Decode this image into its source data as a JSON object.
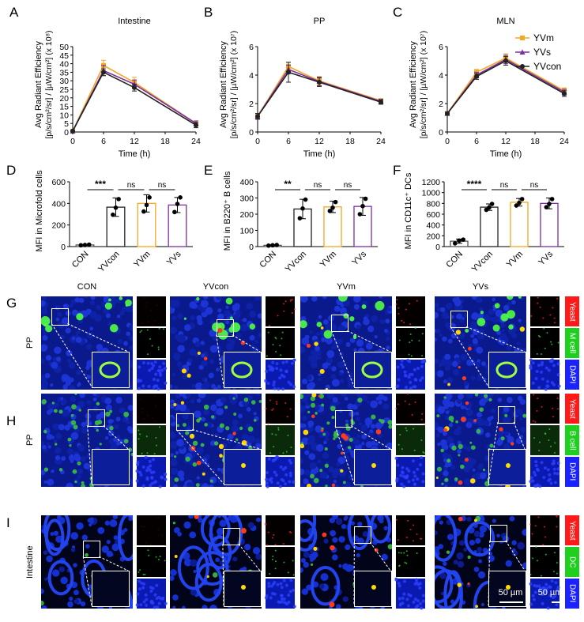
{
  "panel_letters": [
    "A",
    "B",
    "C",
    "D",
    "E",
    "F",
    "G",
    "H",
    "I"
  ],
  "line_charts": [
    {
      "id": "A",
      "title": "Intestine",
      "type": "line",
      "ylabel_1": "Avg Radiant Efficiency",
      "ylabel_2": "[p/s/cm²/sr] / [µW/cm²] (x 10⁸)",
      "xlabel": "Time (h)",
      "x_ticks": [
        "0",
        "6",
        "12",
        "18",
        "24"
      ],
      "y_ticks": [
        "0",
        "5",
        "10",
        "15",
        "20",
        "25",
        "30",
        "35",
        "40",
        "45",
        "50"
      ],
      "xlim": [
        0,
        24
      ],
      "ylim": [
        0,
        50
      ],
      "x": [
        0,
        6,
        12,
        24
      ],
      "series": [
        {
          "name": "YVm",
          "color": "#f5a623",
          "values": [
            0.5,
            39,
            29,
            5
          ],
          "err": [
            0.3,
            3,
            3,
            1.5
          ]
        },
        {
          "name": "YVs",
          "color": "#7b2fa0",
          "values": [
            0.5,
            36,
            28,
            5
          ],
          "err": [
            0.3,
            3,
            2.5,
            1.5
          ]
        },
        {
          "name": "YVcon",
          "color": "#222222",
          "values": [
            0.5,
            35,
            26,
            4
          ],
          "err": [
            0.3,
            2,
            2,
            1.5
          ]
        }
      ]
    },
    {
      "id": "B",
      "title": "PP",
      "type": "line",
      "ylabel_1": "Avg Radiant Efficiency",
      "ylabel_2": "[p/s/cm²/sr] / [µW/cm²] (x 10⁷)",
      "xlabel": "Time (h)",
      "x_ticks": [
        "0",
        "6",
        "12",
        "18",
        "24"
      ],
      "y_ticks": [
        "0",
        "2",
        "4",
        "6"
      ],
      "xlim": [
        0,
        24
      ],
      "ylim": [
        0,
        6
      ],
      "x": [
        0,
        6,
        12,
        24
      ],
      "series": [
        {
          "name": "YVm",
          "color": "#f5a623",
          "values": [
            1.1,
            4.6,
            3.6,
            2.2
          ],
          "err": [
            0.2,
            0.3,
            0.3,
            0.15
          ]
        },
        {
          "name": "YVs",
          "color": "#7b2fa0",
          "values": [
            1.1,
            4.4,
            3.55,
            2.15
          ],
          "err": [
            0.2,
            0.3,
            0.3,
            0.15
          ]
        },
        {
          "name": "YVcon",
          "color": "#222222",
          "values": [
            1.1,
            4.2,
            3.5,
            2.1
          ],
          "err": [
            0.2,
            0.7,
            0.3,
            0.15
          ]
        }
      ]
    },
    {
      "id": "C",
      "title": "MLN",
      "type": "line",
      "ylabel_1": "Avg Radiant Efficiency",
      "ylabel_2": "[p/s/cm²/sr] / [µW/cm²] (x 10⁷)",
      "xlabel": "Time (h)",
      "x_ticks": [
        "0",
        "6",
        "12",
        "18",
        "24"
      ],
      "y_ticks": [
        "0",
        "2",
        "4",
        "6"
      ],
      "xlim": [
        0,
        24
      ],
      "ylim": [
        0,
        6
      ],
      "x": [
        0,
        6,
        12,
        24
      ],
      "series": [
        {
          "name": "YVm",
          "color": "#f5a623",
          "values": [
            1.3,
            4.2,
            5.2,
            2.9
          ],
          "err": [
            0.1,
            0.2,
            0.3,
            0.2
          ]
        },
        {
          "name": "YVs",
          "color": "#7b2fa0",
          "values": [
            1.3,
            4.0,
            5.1,
            2.8
          ],
          "err": [
            0.1,
            0.2,
            0.3,
            0.2
          ]
        },
        {
          "name": "YVcon",
          "color": "#222222",
          "values": [
            1.3,
            3.9,
            5.0,
            2.7
          ],
          "err": [
            0.1,
            0.2,
            0.3,
            0.2
          ]
        }
      ],
      "legend": [
        "YVm",
        "YVs",
        "YVcon"
      ]
    }
  ],
  "bar_charts": [
    {
      "id": "D",
      "type": "bar",
      "ylabel": "MFI in Microfold cells",
      "categories": [
        "CON",
        "YVcon",
        "YVm",
        "YVs"
      ],
      "colors": [
        "#555555",
        "#222222",
        "#f5a623",
        "#7b2fa0"
      ],
      "values": [
        15,
        365,
        400,
        385
      ],
      "err": [
        5,
        85,
        80,
        70
      ],
      "points": [
        [
          12,
          15,
          18
        ],
        [
          295,
          360,
          440
        ],
        [
          325,
          385,
          455
        ],
        [
          320,
          395,
          455
        ]
      ],
      "y_ticks": [
        "0",
        "200",
        "400",
        "600"
      ],
      "ylim": [
        0,
        600
      ],
      "sig": [
        "***",
        "ns",
        "ns"
      ]
    },
    {
      "id": "E",
      "type": "bar",
      "ylabel": "MFI in B220⁺ B cells",
      "categories": [
        "CON",
        "YVcon",
        "YVm",
        "YVs"
      ],
      "colors": [
        "#555555",
        "#222222",
        "#f5a623",
        "#7b2fa0"
      ],
      "values": [
        8,
        232,
        245,
        248
      ],
      "err": [
        3,
        60,
        35,
        55
      ],
      "points": [
        [
          6,
          8,
          10
        ],
        [
          175,
          235,
          290
        ],
        [
          220,
          240,
          275
        ],
        [
          200,
          250,
          295
        ]
      ],
      "y_ticks": [
        "0",
        "100",
        "200",
        "300",
        "400"
      ],
      "ylim": [
        0,
        400
      ],
      "sig": [
        "**",
        "ns",
        "ns"
      ]
    },
    {
      "id": "F",
      "type": "bar",
      "ylabel": "MFI in CD11c⁺ DCs",
      "categories": [
        "CON",
        "YVcon",
        "YVm",
        "YVs"
      ],
      "colors": [
        "#555555",
        "#222222",
        "#f5a623",
        "#7b2fa0"
      ],
      "values": [
        100,
        730,
        820,
        800
      ],
      "err": [
        40,
        60,
        70,
        100
      ],
      "points": [
        [
          60,
          110,
          130
        ],
        [
          680,
          725,
          790
        ],
        [
          760,
          810,
          880
        ],
        [
          730,
          790,
          880
        ]
      ],
      "y_ticks": [
        "0",
        "200",
        "400",
        "600",
        "800",
        "1000",
        "1200"
      ],
      "ylim": [
        0,
        1200
      ],
      "sig": [
        "****",
        "ns",
        "ns"
      ]
    }
  ],
  "micrograph": {
    "columns": [
      "CON",
      "YVcon",
      "YVm",
      "YVs"
    ],
    "rows": [
      {
        "letter": "G",
        "tissue": "PP",
        "marker": "M cell"
      },
      {
        "letter": "H",
        "tissue": "PP",
        "marker": "B cell"
      },
      {
        "letter": "I",
        "tissue": "Intestine",
        "marker": "DC"
      }
    ],
    "channel_top": "Yeast",
    "channel_bottom": "DAPI",
    "scale_main": "50 µm",
    "scale_side": "50 µm"
  }
}
